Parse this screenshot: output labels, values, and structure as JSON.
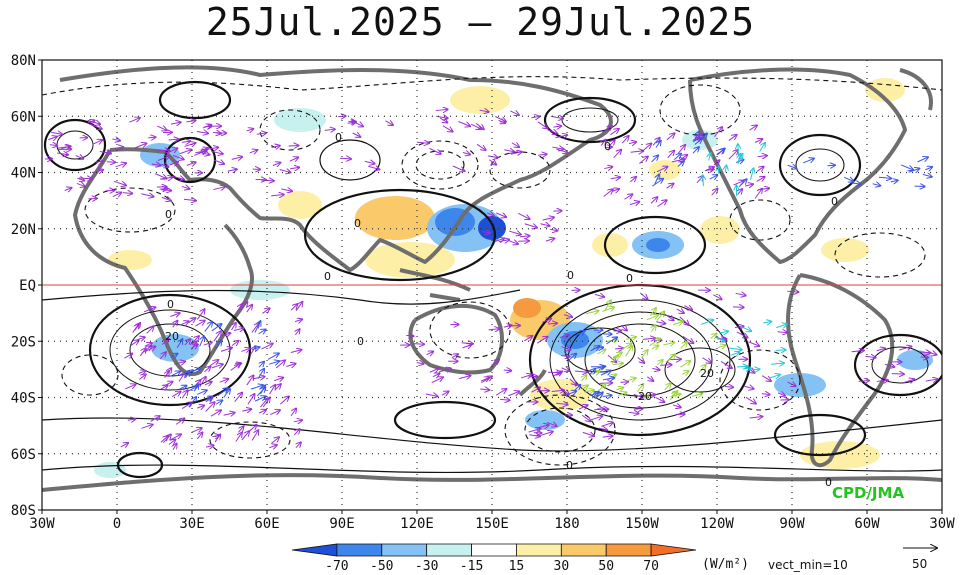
{
  "title": "25Jul.2025 – 29Jul.2025",
  "lat_labels": [
    "80N",
    "60N",
    "40N",
    "20N",
    "EQ",
    "20S",
    "40S",
    "60S",
    "80S"
  ],
  "lon_labels": [
    "30W",
    "0",
    "30E",
    "60E",
    "90E",
    "120E",
    "150E",
    "180",
    "150W",
    "120W",
    "90W",
    "60W",
    "30W"
  ],
  "colorbar": {
    "ticks": [
      "-70",
      "-50",
      "-30",
      "-15",
      "15",
      "30",
      "50",
      "70"
    ],
    "colors": [
      "#1f4fd6",
      "#3d86ec",
      "#84c2f5",
      "#c6f1ef",
      "#ffffff",
      "#fdf0a6",
      "#f9c96a",
      "#f59a3e",
      "#f46f25"
    ],
    "unit_label": "(W/m²)",
    "vect_label": "vect_min=10"
  },
  "reference_vector": {
    "value": "50"
  },
  "credit": "CPD/JMA",
  "contour_labels": {
    "zero": "0",
    "twenty": "20",
    "neg_twenty": "-20"
  },
  "colors": {
    "land_outline": "#6e6e6e",
    "contour": "#111111",
    "arrow_main": "#9d2fd6",
    "arrow_blue": "#3a55e6",
    "arrow_cyan": "#20c8d8",
    "arrow_green": "#9ad43a",
    "equator": "#e0403a",
    "credit": "#22c41e",
    "grid": "#333333"
  }
}
